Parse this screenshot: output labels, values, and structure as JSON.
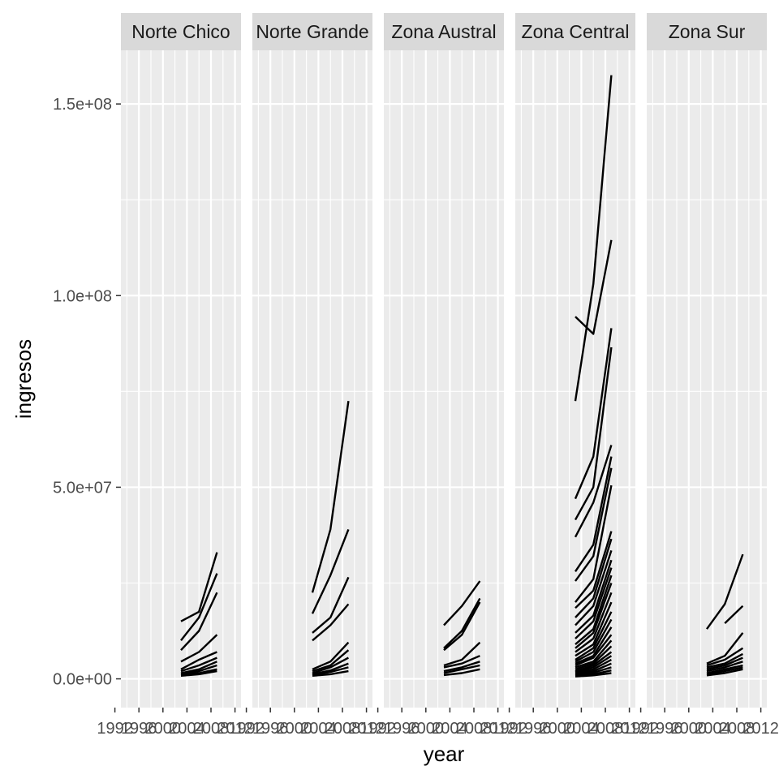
{
  "chart_data": {
    "type": "line",
    "facet_by": "region",
    "xlabel": "year",
    "ylabel": "ingresos",
    "xlim": [
      1993,
      2013
    ],
    "ylim": [
      -7500000,
      164000000
    ],
    "x_ticks": [
      1992,
      1996,
      2000,
      2004,
      2008,
      2012
    ],
    "x_tick_labels": [
      "1992",
      "1996",
      "2000",
      "2004",
      "2008",
      "2012"
    ],
    "y_ticks": [
      0,
      50000000,
      100000000,
      150000000
    ],
    "y_tick_labels": [
      "0.0e+00",
      "5.0e+07",
      "1.0e+08",
      "1.5e+08"
    ],
    "y_minor_ticks": [
      25000000,
      75000000,
      125000000
    ],
    "grid": true,
    "legend": "none",
    "colors": {
      "panel_bg": "#ebebeb",
      "grid": "#ffffff",
      "strip_bg": "#d9d9d9",
      "line": "#000000"
    },
    "panels": [
      {
        "title": "Norte Chico",
        "series": [
          {
            "x": [
              2003,
              2006,
              2009
            ],
            "y": [
              15000000,
              17500000,
              33000000
            ]
          },
          {
            "x": [
              2003,
              2006,
              2009
            ],
            "y": [
              10000000,
              16000000,
              27500000
            ]
          },
          {
            "x": [
              2003,
              2006,
              2009
            ],
            "y": [
              7500000,
              12500000,
              22500000
            ]
          },
          {
            "x": [
              2003,
              2006,
              2009
            ],
            "y": [
              4500000,
              7000000,
              11500000
            ]
          },
          {
            "x": [
              2003,
              2006,
              2009
            ],
            "y": [
              2500000,
              5000000,
              7000000
            ]
          },
          {
            "x": [
              2003,
              2006,
              2009
            ],
            "y": [
              2000000,
              3500000,
              5500000
            ]
          },
          {
            "x": [
              2003,
              2006,
              2009
            ],
            "y": [
              1500000,
              2500000,
              4500000
            ]
          },
          {
            "x": [
              2003,
              2006,
              2009
            ],
            "y": [
              1200000,
              2000000,
              3500000
            ]
          },
          {
            "x": [
              2003,
              2006,
              2009
            ],
            "y": [
              1000000,
              1500000,
              2500000
            ]
          },
          {
            "x": [
              2003,
              2006,
              2009
            ],
            "y": [
              800000,
              1200000,
              2000000
            ]
          }
        ]
      },
      {
        "title": "Norte Grande",
        "series": [
          {
            "x": [
              2003,
              2006,
              2009
            ],
            "y": [
              22500000,
              39000000,
              72500000
            ]
          },
          {
            "x": [
              2003,
              2006,
              2009
            ],
            "y": [
              17000000,
              27000000,
              39000000
            ]
          },
          {
            "x": [
              2003,
              2006,
              2009
            ],
            "y": [
              12000000,
              16000000,
              26500000
            ]
          },
          {
            "x": [
              2003,
              2006,
              2009
            ],
            "y": [
              10000000,
              14000000,
              19500000
            ]
          },
          {
            "x": [
              2003,
              2006,
              2009
            ],
            "y": [
              2500000,
              4500000,
              9500000
            ]
          },
          {
            "x": [
              2003,
              2006,
              2009
            ],
            "y": [
              2000000,
              3500000,
              7500000
            ]
          },
          {
            "x": [
              2003,
              2006,
              2009
            ],
            "y": [
              1500000,
              3000000,
              5500000
            ]
          },
          {
            "x": [
              2003,
              2006,
              2009
            ],
            "y": [
              1200000,
              2200000,
              4000000
            ]
          },
          {
            "x": [
              2003,
              2006,
              2009
            ],
            "y": [
              1000000,
              1800000,
              3000000
            ]
          },
          {
            "x": [
              2003,
              2006,
              2009
            ],
            "y": [
              800000,
              1200000,
              2000000
            ]
          }
        ]
      },
      {
        "title": "Zona Austral",
        "series": [
          {
            "x": [
              2003,
              2006,
              2009
            ],
            "y": [
              14000000,
              19000000,
              25500000
            ]
          },
          {
            "x": [
              2003,
              2006,
              2009
            ],
            "y": [
              8000000,
              12500000,
              21000000
            ]
          },
          {
            "x": [
              2003,
              2006,
              2009
            ],
            "y": [
              7500000,
              11500000,
              20000000
            ]
          },
          {
            "x": [
              2003,
              2006,
              2009
            ],
            "y": [
              3500000,
              5000000,
              9500000
            ]
          },
          {
            "x": [
              2003,
              2006,
              2009
            ],
            "y": [
              3000000,
              4000000,
              6000000
            ]
          },
          {
            "x": [
              2003,
              2006,
              2009
            ],
            "y": [
              2000000,
              3000000,
              4500000
            ]
          },
          {
            "x": [
              2003,
              2006,
              2009
            ],
            "y": [
              1500000,
              2500000,
              3500000
            ]
          },
          {
            "x": [
              2003,
              2006,
              2009
            ],
            "y": [
              1000000,
              1500000,
              2500000
            ]
          }
        ]
      },
      {
        "title": "Zona Central",
        "series": [
          {
            "x": [
              2003,
              2006,
              2009
            ],
            "y": [
              72500000,
              103000000,
              157500000
            ]
          },
          {
            "x": [
              2003,
              2006,
              2009
            ],
            "y": [
              94500000,
              90000000,
              114500000
            ]
          },
          {
            "x": [
              2003,
              2006,
              2009
            ],
            "y": [
              47000000,
              58000000,
              91500000
            ]
          },
          {
            "x": [
              2003,
              2006,
              2009
            ],
            "y": [
              41500000,
              50000000,
              86500000
            ]
          },
          {
            "x": [
              2003,
              2006,
              2009
            ],
            "y": [
              37000000,
              46000000,
              61000000
            ]
          },
          {
            "x": [
              2003,
              2006,
              2009
            ],
            "y": [
              28000000,
              35000000,
              58000000
            ]
          },
          {
            "x": [
              2003,
              2006,
              2009
            ],
            "y": [
              25500000,
              32000000,
              55000000
            ]
          },
          {
            "x": [
              2003,
              2006,
              2009
            ],
            "y": [
              20000000,
              26000000,
              50500000
            ]
          },
          {
            "x": [
              2003,
              2006,
              2009
            ],
            "y": [
              18500000,
              23000000,
              38500000
            ]
          },
          {
            "x": [
              2003,
              2006,
              2009
            ],
            "y": [
              16000000,
              21000000,
              36500000
            ]
          },
          {
            "x": [
              2003,
              2006,
              2009
            ],
            "y": [
              14000000,
              19000000,
              33500000
            ]
          },
          {
            "x": [
              2003,
              2006,
              2009
            ],
            "y": [
              12000000,
              16500000,
              31000000
            ]
          },
          {
            "x": [
              2003,
              2006,
              2009
            ],
            "y": [
              10500000,
              15000000,
              29000000
            ]
          },
          {
            "x": [
              2003,
              2006,
              2009
            ],
            "y": [
              9000000,
              13000000,
              27000000
            ]
          },
          {
            "x": [
              2003,
              2006,
              2009
            ],
            "y": [
              8000000,
              12000000,
              25000000
            ]
          },
          {
            "x": [
              2003,
              2006,
              2009
            ],
            "y": [
              7000000,
              10500000,
              22500000
            ]
          },
          {
            "x": [
              2003,
              2006,
              2009
            ],
            "y": [
              6000000,
              9000000,
              20000000
            ]
          },
          {
            "x": [
              2003,
              2006,
              2009
            ],
            "y": [
              5000000,
              8000000,
              17500000
            ]
          },
          {
            "x": [
              2003,
              2006,
              2009
            ],
            "y": [
              4500000,
              7000000,
              15500000
            ]
          },
          {
            "x": [
              2003,
              2006,
              2009
            ],
            "y": [
              4000000,
              6000000,
              13500000
            ]
          },
          {
            "x": [
              2003,
              2006,
              2009
            ],
            "y": [
              3500000,
              5500000,
              11500000
            ]
          },
          {
            "x": [
              2003,
              2006,
              2009
            ],
            "y": [
              3000000,
              4500000,
              10000000
            ]
          },
          {
            "x": [
              2003,
              2006,
              2009
            ],
            "y": [
              2500000,
              4000000,
              8500000
            ]
          },
          {
            "x": [
              2003,
              2006,
              2009
            ],
            "y": [
              2000000,
              3500000,
              7000000
            ]
          },
          {
            "x": [
              2003,
              2006,
              2009
            ],
            "y": [
              1800000,
              3000000,
              6000000
            ]
          },
          {
            "x": [
              2003,
              2006,
              2009
            ],
            "y": [
              1500000,
              2500000,
              5000000
            ]
          },
          {
            "x": [
              2003,
              2006,
              2009
            ],
            "y": [
              1200000,
              2000000,
              4000000
            ]
          },
          {
            "x": [
              2003,
              2006,
              2009
            ],
            "y": [
              1000000,
              1600000,
              3000000
            ]
          },
          {
            "x": [
              2003,
              2006,
              2009
            ],
            "y": [
              800000,
              1200000,
              2200000
            ]
          },
          {
            "x": [
              2003,
              2006,
              2009
            ],
            "y": [
              600000,
              900000,
              1500000
            ]
          }
        ]
      },
      {
        "title": "Zona Sur",
        "series": [
          {
            "x": [
              2003,
              2006,
              2009
            ],
            "y": [
              13000000,
              19500000,
              32500000
            ]
          },
          {
            "x": [
              2006,
              2009
            ],
            "y": [
              14500000,
              19000000
            ]
          },
          {
            "x": [
              2003,
              2006,
              2009
            ],
            "y": [
              4000000,
              6000000,
              12000000
            ]
          },
          {
            "x": [
              2003,
              2006,
              2009
            ],
            "y": [
              3500000,
              5000000,
              8000000
            ]
          },
          {
            "x": [
              2003,
              2006,
              2009
            ],
            "y": [
              3000000,
              4000000,
              6500000
            ]
          },
          {
            "x": [
              2003,
              2006,
              2009
            ],
            "y": [
              2500000,
              3500000,
              5500000
            ]
          },
          {
            "x": [
              2003,
              2006,
              2009
            ],
            "y": [
              2000000,
              3000000,
              4500000
            ]
          },
          {
            "x": [
              2003,
              2006,
              2009
            ],
            "y": [
              1500000,
              2500000,
              3500000
            ]
          },
          {
            "x": [
              2003,
              2006,
              2009
            ],
            "y": [
              1200000,
              2000000,
              3000000
            ]
          },
          {
            "x": [
              2003,
              2006,
              2009
            ],
            "y": [
              900000,
              1500000,
              2500000
            ]
          }
        ]
      }
    ]
  }
}
